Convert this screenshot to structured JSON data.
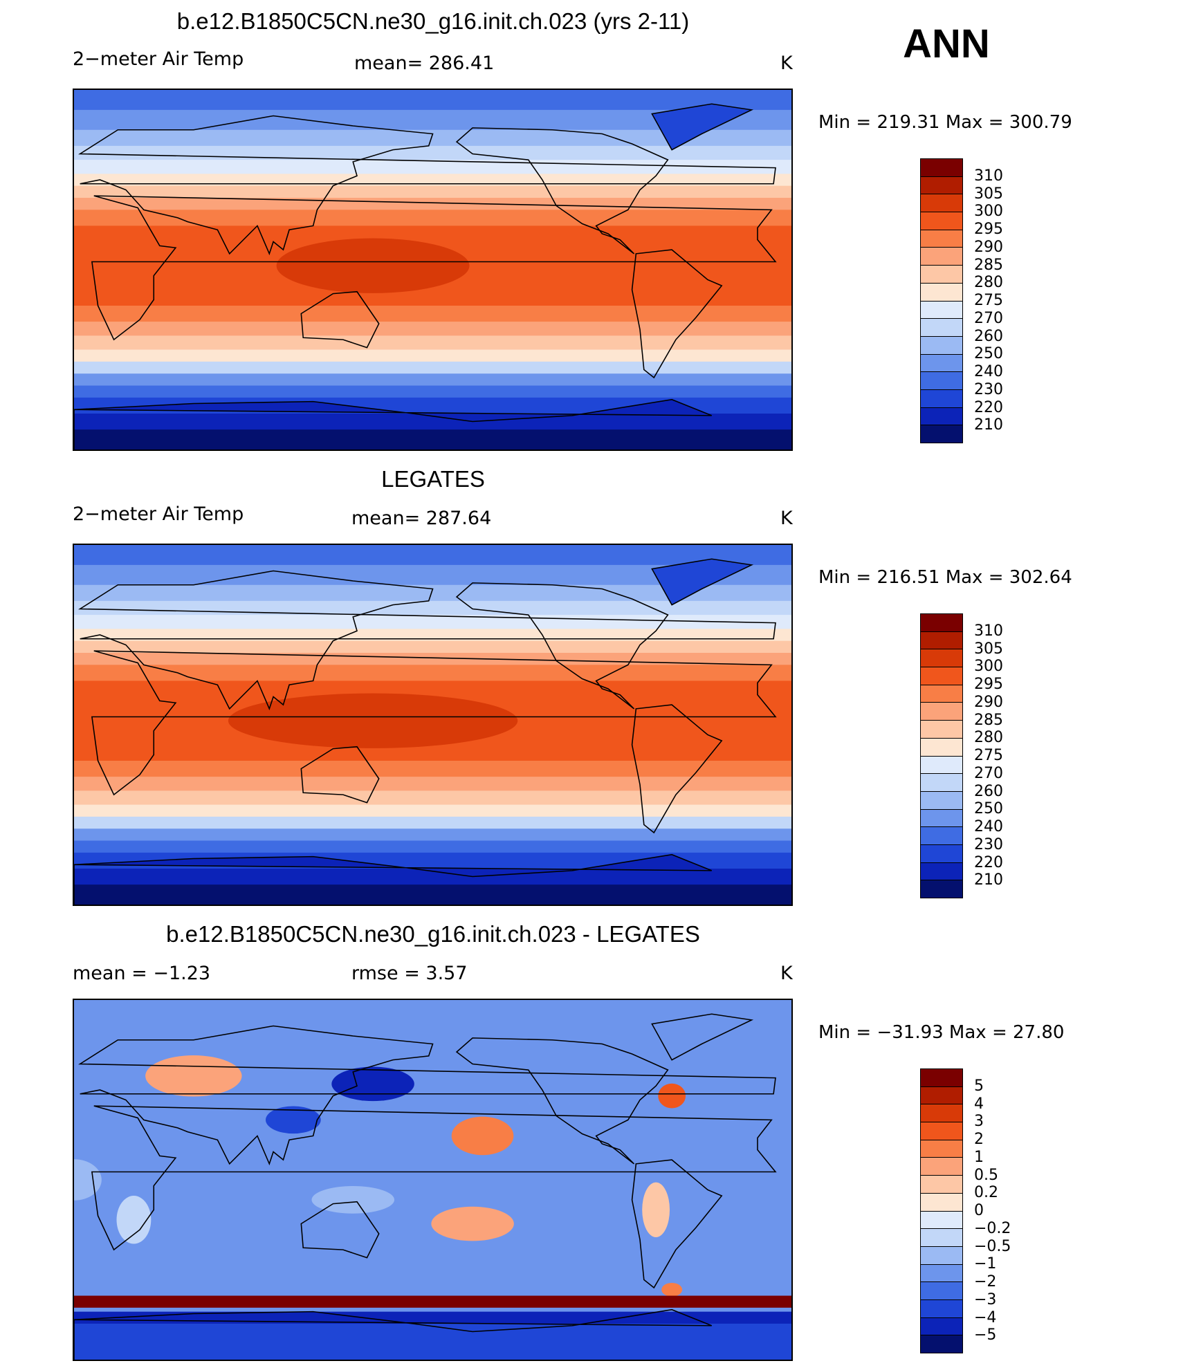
{
  "season": "ANN",
  "panels": [
    {
      "title": "b.e12.B1850C5CN.ne30_g16.init.ch.023 (yrs 2-11)",
      "left_label": "2−meter Air Temp",
      "center_label": "mean=  286.41",
      "units": "K",
      "minmax": "Min  =  219.31  Max  =  300.79",
      "map_type": "model-temperature",
      "colorbar": {
        "labels": [
          "310",
          "305",
          "300",
          "295",
          "290",
          "285",
          "280",
          "275",
          "270",
          "260",
          "250",
          "240",
          "230",
          "220",
          "210"
        ],
        "colors": [
          "#7a0000",
          "#b01d00",
          "#d83a08",
          "#f0561c",
          "#f87e46",
          "#fba37a",
          "#fdc7a6",
          "#fde6d2",
          "#dfeafb",
          "#c2d7f8",
          "#9bbaf3",
          "#6d95ec",
          "#3f6ce3",
          "#1f46d6",
          "#0c23b8",
          "#04106e"
        ]
      }
    },
    {
      "title": "LEGATES",
      "left_label": "2−meter Air Temp",
      "center_label": "mean=  287.64",
      "units": "K",
      "minmax": "Min  =  216.51  Max  =  302.64",
      "map_type": "obs-temperature",
      "colorbar": {
        "labels": [
          "310",
          "305",
          "300",
          "295",
          "290",
          "285",
          "280",
          "275",
          "270",
          "260",
          "250",
          "240",
          "230",
          "220",
          "210"
        ],
        "colors": [
          "#7a0000",
          "#b01d00",
          "#d83a08",
          "#f0561c",
          "#f87e46",
          "#fba37a",
          "#fdc7a6",
          "#fde6d2",
          "#dfeafb",
          "#c2d7f8",
          "#9bbaf3",
          "#6d95ec",
          "#3f6ce3",
          "#1f46d6",
          "#0c23b8",
          "#04106e"
        ]
      }
    },
    {
      "title": "b.e12.B1850C5CN.ne30_g16.init.ch.023 - LEGATES",
      "left_label": "mean =    −1.23",
      "center_label": "rmse =     3.57",
      "units": "K",
      "minmax": "Min  =  −31.93  Max  =    27.80",
      "map_type": "difference",
      "colorbar": {
        "labels": [
          "5",
          "4",
          "3",
          "2",
          "1",
          "0.5",
          "0.2",
          "0",
          "−0.2",
          "−0.5",
          "−1",
          "−2",
          "−3",
          "−4",
          "−5"
        ],
        "colors": [
          "#7a0000",
          "#b01d00",
          "#d83a08",
          "#f0561c",
          "#f87e46",
          "#fba37a",
          "#fdc7a6",
          "#fde6d2",
          "#dfeafb",
          "#c2d7f8",
          "#9bbaf3",
          "#6d95ec",
          "#3f6ce3",
          "#1f46d6",
          "#0c23b8",
          "#04106e"
        ]
      }
    }
  ]
}
